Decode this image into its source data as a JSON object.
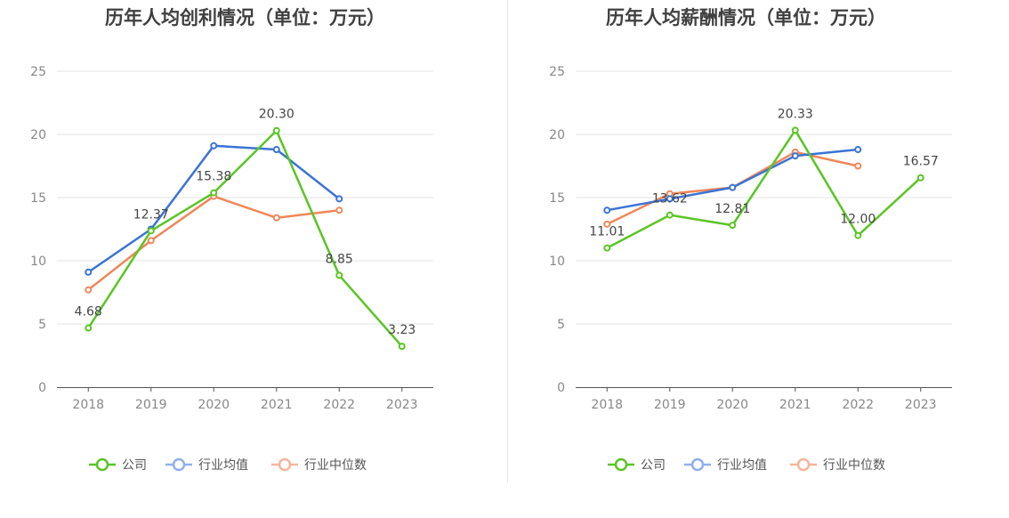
{
  "colors": {
    "company": "#5ac524",
    "industry_avg": "#3a73d6",
    "industry_median": "#f0875a",
    "legend_avg": "#8fb0ec",
    "legend_median": "#f6b49b",
    "grid": "#e3e3e3",
    "axis": "#555555"
  },
  "legend": [
    "公司",
    "行业均值",
    "行业中位数"
  ],
  "chart_data": [
    {
      "type": "line",
      "title": "历年人均创利情况（单位：万元）",
      "categories": [
        "2018",
        "2019",
        "2020",
        "2021",
        "2022",
        "2023"
      ],
      "ylim": [
        0,
        25
      ],
      "yticks": [
        0,
        5,
        10,
        15,
        20,
        25
      ],
      "grid": true,
      "legend_position": "bottom",
      "series": [
        {
          "name": "公司",
          "values": [
            4.68,
            12.37,
            15.38,
            20.3,
            8.85,
            3.23
          ],
          "labels": [
            "4.68",
            "12.37",
            "15.38",
            "20.30",
            "8.85",
            "3.23"
          ]
        },
        {
          "name": "行业均值",
          "values": [
            9.1,
            12.5,
            19.1,
            18.8,
            14.9,
            null
          ]
        },
        {
          "name": "行业中位数",
          "values": [
            7.7,
            11.6,
            15.1,
            13.4,
            14.0,
            null
          ]
        }
      ]
    },
    {
      "type": "line",
      "title": "历年人均薪酬情况（单位：万元）",
      "categories": [
        "2018",
        "2019",
        "2020",
        "2021",
        "2022",
        "2023"
      ],
      "ylim": [
        0,
        25
      ],
      "yticks": [
        0,
        5,
        10,
        15,
        20,
        25
      ],
      "grid": true,
      "legend_position": "bottom",
      "series": [
        {
          "name": "公司",
          "values": [
            11.01,
            13.62,
            12.81,
            20.33,
            12.0,
            16.57
          ],
          "labels": [
            "11.01",
            "13.62",
            "12.81",
            "20.33",
            "12.00",
            "16.57"
          ]
        },
        {
          "name": "行业均值",
          "values": [
            14.0,
            14.9,
            15.8,
            18.3,
            18.8,
            null
          ]
        },
        {
          "name": "行业中位数",
          "values": [
            12.9,
            15.3,
            15.8,
            18.6,
            17.5,
            null
          ]
        }
      ]
    }
  ]
}
